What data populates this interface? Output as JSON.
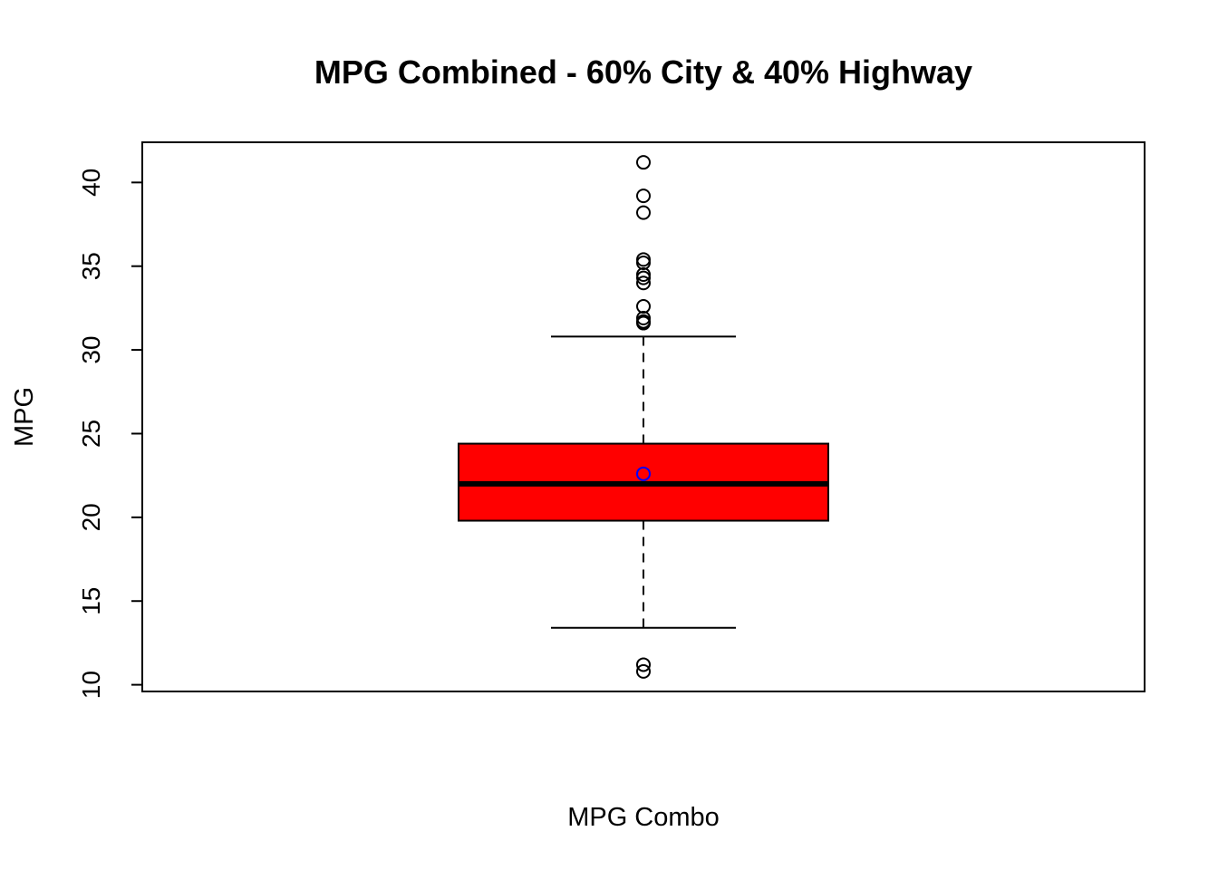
{
  "chart_data": {
    "type": "boxplot",
    "title": "MPG Combined - 60% City & 40% Highway",
    "xlabel": "MPG Combo",
    "ylabel": "MPG",
    "ylim": [
      9.6,
      42.4
    ],
    "yticks": [
      10,
      15,
      20,
      25,
      30,
      35,
      40
    ],
    "ytick_labels": [
      "10",
      "15",
      "20",
      "25",
      "30",
      "35",
      "40"
    ],
    "box": {
      "lower_whisker": 13.4,
      "q1": 19.8,
      "median": 22.0,
      "q3": 24.4,
      "upper_whisker": 30.8,
      "mean": 22.6
    },
    "outliers": [
      41.2,
      39.2,
      38.2,
      35.4,
      35.2,
      34.5,
      34.3,
      34.0,
      32.6,
      31.9,
      31.7,
      31.6,
      11.2,
      10.8
    ],
    "colors": {
      "box_fill": "#ff0000",
      "mean_marker": "#0000ff",
      "stroke": "#000000"
    },
    "grid": false
  }
}
